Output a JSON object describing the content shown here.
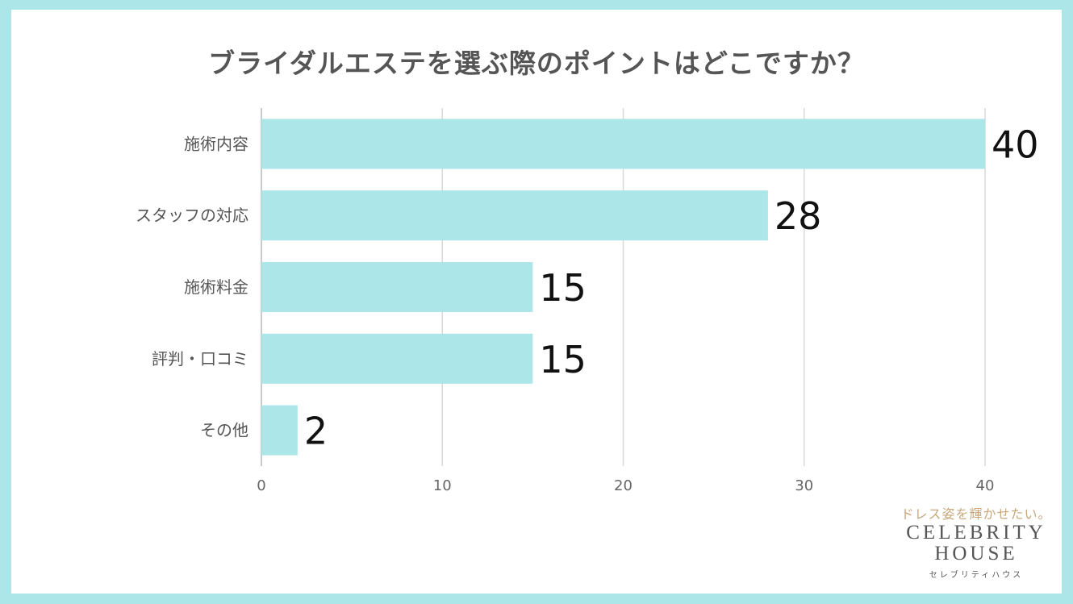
{
  "chart_data": {
    "type": "bar",
    "orientation": "horizontal",
    "title": "ブライダルエステを選ぶ際のポイントはどこですか？",
    "categories": [
      "施術内容",
      "スタッフの対応",
      "施術料金",
      "評判・口コミ",
      "その他"
    ],
    "values": [
      40,
      28,
      15,
      15,
      2
    ],
    "xlim": [
      0,
      40
    ],
    "xticks": [
      "0",
      "10",
      "20",
      "30",
      "40"
    ],
    "grid": true,
    "bar_color": "#ade6e8"
  },
  "logo": {
    "tagline": "ドレス姿を輝かせたい。",
    "brand_line1": "CELEBRITY",
    "brand_line2": "HOUSE",
    "brand_sub": "セレブリティハウス"
  }
}
